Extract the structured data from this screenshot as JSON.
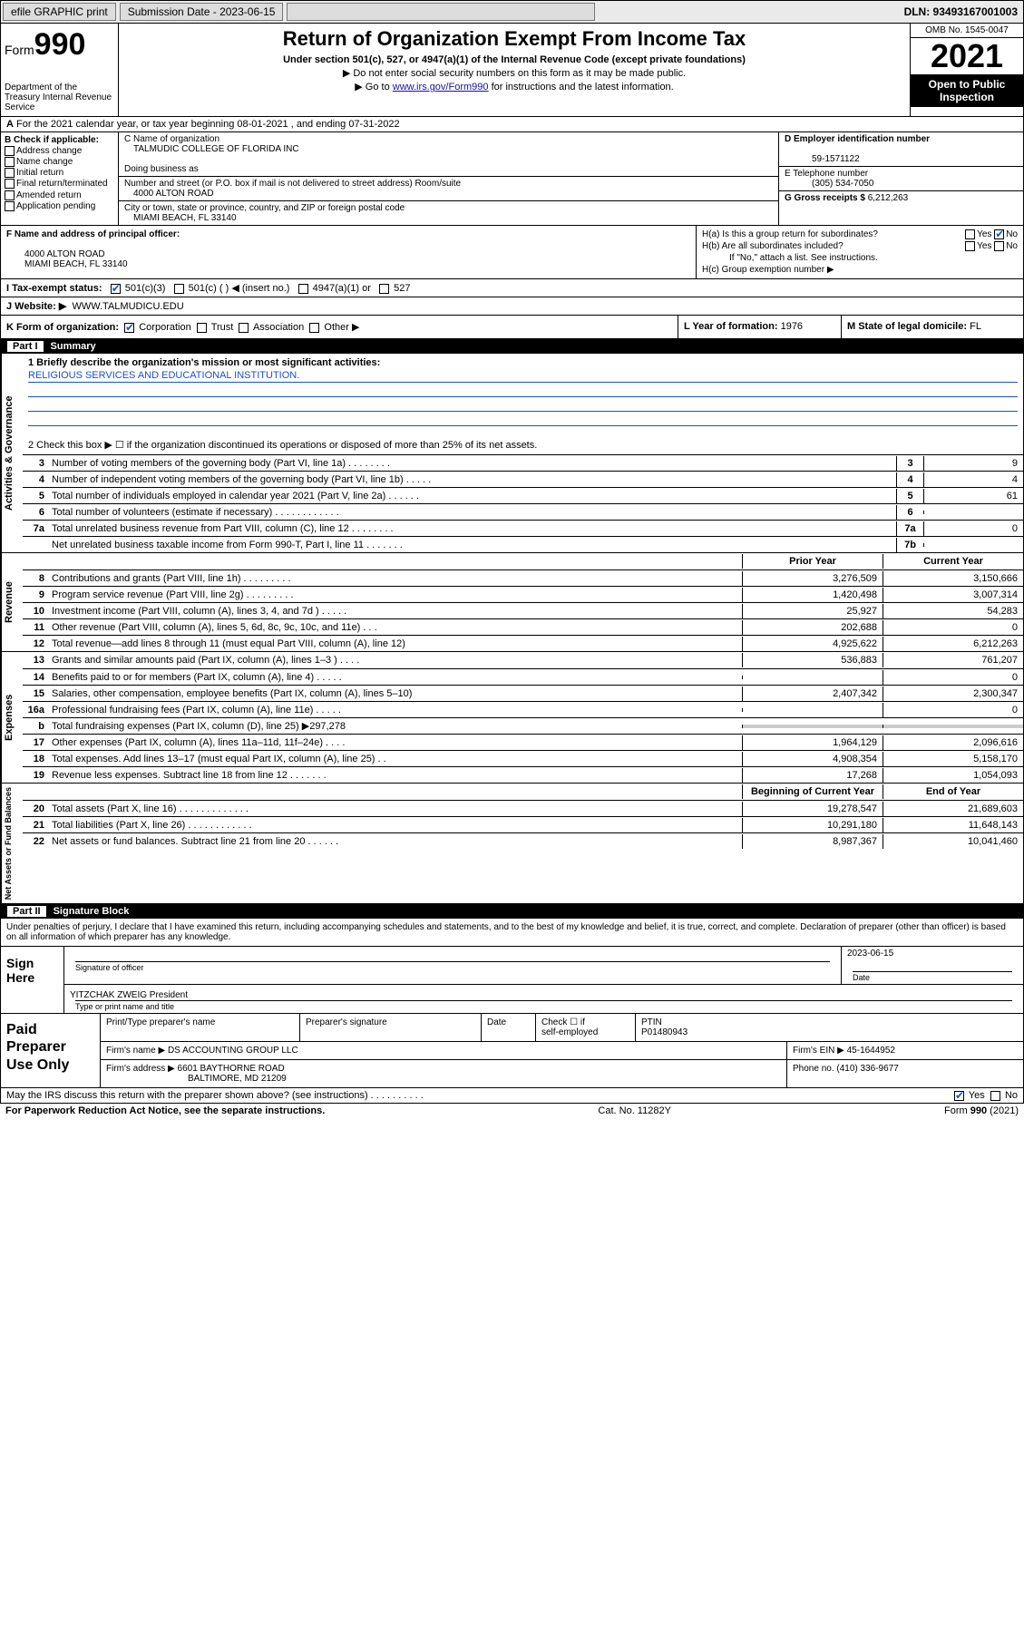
{
  "topbar": {
    "efile": "efile GRAPHIC print",
    "sub_label": "Submission Date - 2023-06-15",
    "dln": "DLN: 93493167001003"
  },
  "header": {
    "form_word": "Form",
    "form_num": "990",
    "title": "Return of Organization Exempt From Income Tax",
    "subtitle": "Under section 501(c), 527, or 4947(a)(1) of the Internal Revenue Code (except private foundations)",
    "note1": "▶ Do not enter social security numbers on this form as it may be made public.",
    "note2_pre": "▶ Go to ",
    "note2_link": "www.irs.gov/Form990",
    "note2_post": " for instructions and the latest information.",
    "dept": "Department of the Treasury Internal Revenue Service",
    "omb": "OMB No. 1545-0047",
    "year": "2021",
    "openpub": "Open to Public Inspection"
  },
  "row_a": "For the 2021 calendar year, or tax year beginning 08-01-2021   , and ending 07-31-2022",
  "col_b": {
    "hdr": "B Check if applicable:",
    "items": [
      "Address change",
      "Name change",
      "Initial return",
      "Final return/terminated",
      "Amended return",
      "Application pending"
    ]
  },
  "col_c": {
    "name_lbl": "C Name of organization",
    "name_val": "TALMUDIC COLLEGE OF FLORIDA INC",
    "dba_lbl": "Doing business as",
    "addr_lbl": "Number and street (or P.O. box if mail is not delivered to street address)      Room/suite",
    "addr_val": "4000 ALTON ROAD",
    "city_lbl": "City or town, state or province, country, and ZIP or foreign postal code",
    "city_val": "MIAMI BEACH, FL  33140"
  },
  "col_d": {
    "ein_lbl": "D Employer identification number",
    "ein_val": "59-1571122",
    "phone_lbl": "E Telephone number",
    "phone_val": "(305) 534-7050",
    "gross_lbl": "G Gross receipts $",
    "gross_val": "6,212,263"
  },
  "block_f": {
    "f_lbl": "F  Name and address of principal officer:",
    "f_addr1": "4000 ALTON ROAD",
    "f_addr2": "MIAMI BEACH, FL  33140",
    "ha": "H(a)  Is this a group return for subordinates?",
    "ha_yes": "Yes",
    "ha_no": "No",
    "hb": "H(b)  Are all subordinates included?",
    "hb_note": "If \"No,\" attach a list. See instructions.",
    "hc": "H(c)  Group exemption number ▶"
  },
  "row_i": {
    "lbl": "I   Tax-exempt status:",
    "o1": "501(c)(3)",
    "o2": "501(c) (  ) ◀ (insert no.)",
    "o3": "4947(a)(1) or",
    "o4": "527"
  },
  "row_j": {
    "lbl": "J   Website: ▶",
    "val": "WWW.TALMUDICU.EDU"
  },
  "row_k": {
    "k_lbl": "K Form of organization:",
    "k_opts": [
      "Corporation",
      "Trust",
      "Association",
      "Other ▶"
    ],
    "l_lbl": "L Year of formation:",
    "l_val": "1976",
    "m_lbl": "M State of legal domicile:",
    "m_val": "FL"
  },
  "part1": {
    "num": "Part I",
    "title": "Summary"
  },
  "mission": {
    "q1": "1  Briefly describe the organization's mission or most significant activities:",
    "text": "RELIGIOUS SERVICES AND EDUCATIONAL INSTITUTION.",
    "q2": "2  Check this box ▶ ☐  if the organization discontinued its operations or disposed of more than 25% of its net assets."
  },
  "gov_rows": [
    {
      "n": "3",
      "d": "Number of voting members of the governing body (Part VI, line 1a)  .   .   .   .   .   .   .   .",
      "bn": "3",
      "bv": "9"
    },
    {
      "n": "4",
      "d": "Number of independent voting members of the governing body (Part VI, line 1b)   .   .   .   .   .",
      "bn": "4",
      "bv": "4"
    },
    {
      "n": "5",
      "d": "Total number of individuals employed in calendar year 2021 (Part V, line 2a)   .   .   .   .   .   .",
      "bn": "5",
      "bv": "61"
    },
    {
      "n": "6",
      "d": "Total number of volunteers (estimate if necessary)   .   .   .   .   .   .   .   .   .   .   .   .",
      "bn": "6",
      "bv": ""
    },
    {
      "n": "7a",
      "d": "Total unrelated business revenue from Part VIII, column (C), line 12   .   .   .   .   .   .   .   .",
      "bn": "7a",
      "bv": "0"
    },
    {
      "n": "",
      "d": "Net unrelated business taxable income from Form 990-T, Part I, line 11   .   .   .   .   .   .   .",
      "bn": "7b",
      "bv": ""
    }
  ],
  "year_hdr": {
    "py": "Prior Year",
    "cy": "Current Year"
  },
  "rev_rows": [
    {
      "n": "8",
      "d": "Contributions and grants (Part VIII, line 1h)   .   .   .   .   .   .   .   .   .",
      "py": "3,276,509",
      "cy": "3,150,666"
    },
    {
      "n": "9",
      "d": "Program service revenue (Part VIII, line 2g)   .   .   .   .   .   .   .   .   .",
      "py": "1,420,498",
      "cy": "3,007,314"
    },
    {
      "n": "10",
      "d": "Investment income (Part VIII, column (A), lines 3, 4, and 7d )   .   .   .   .   .",
      "py": "25,927",
      "cy": "54,283"
    },
    {
      "n": "11",
      "d": "Other revenue (Part VIII, column (A), lines 5, 6d, 8c, 9c, 10c, and 11e)   .   .   .",
      "py": "202,688",
      "cy": "0"
    },
    {
      "n": "12",
      "d": "Total revenue—add lines 8 through 11 (must equal Part VIII, column (A), line 12)",
      "py": "4,925,622",
      "cy": "6,212,263"
    }
  ],
  "exp_rows": [
    {
      "n": "13",
      "d": "Grants and similar amounts paid (Part IX, column (A), lines 1–3 )   .   .   .   .",
      "py": "536,883",
      "cy": "761,207"
    },
    {
      "n": "14",
      "d": "Benefits paid to or for members (Part IX, column (A), line 4)   .   .   .   .   .",
      "py": "",
      "cy": "0"
    },
    {
      "n": "15",
      "d": "Salaries, other compensation, employee benefits (Part IX, column (A), lines 5–10)",
      "py": "2,407,342",
      "cy": "2,300,347"
    },
    {
      "n": "16a",
      "d": "Professional fundraising fees (Part IX, column (A), line 11e)   .   .   .   .   .",
      "py": "",
      "cy": "0"
    },
    {
      "n": "b",
      "d": "Total fundraising expenses (Part IX, column (D), line 25) ▶297,278",
      "py": "shade",
      "cy": "shade"
    },
    {
      "n": "17",
      "d": "Other expenses (Part IX, column (A), lines 11a–11d, 11f–24e)   .   .   .   .",
      "py": "1,964,129",
      "cy": "2,096,616"
    },
    {
      "n": "18",
      "d": "Total expenses. Add lines 13–17 (must equal Part IX, column (A), line 25)   .   .",
      "py": "4,908,354",
      "cy": "5,158,170"
    },
    {
      "n": "19",
      "d": "Revenue less expenses. Subtract line 18 from line 12   .   .   .   .   .   .   .",
      "py": "17,268",
      "cy": "1,054,093"
    }
  ],
  "net_hdr": {
    "py": "Beginning of Current Year",
    "cy": "End of Year"
  },
  "net_rows": [
    {
      "n": "20",
      "d": "Total assets (Part X, line 16)   .   .   .   .   .   .   .   .   .   .   .   .   .",
      "py": "19,278,547",
      "cy": "21,689,603"
    },
    {
      "n": "21",
      "d": "Total liabilities (Part X, line 26)   .   .   .   .   .   .   .   .   .   .   .   .",
      "py": "10,291,180",
      "cy": "11,648,143"
    },
    {
      "n": "22",
      "d": "Net assets or fund balances. Subtract line 21 from line 20   .   .   .   .   .   .",
      "py": "8,987,367",
      "cy": "10,041,460"
    }
  ],
  "side_labels": {
    "gov": "Activities & Governance",
    "rev": "Revenue",
    "exp": "Expenses",
    "net": "Net Assets or Fund Balances"
  },
  "part2": {
    "num": "Part II",
    "title": "Signature Block"
  },
  "sig_intro": "Under penalties of perjury, I declare that I have examined this return, including accompanying schedules and statements, and to the best of my knowledge and belief, it is true, correct, and complete. Declaration of preparer (other than officer) is based on all information of which preparer has any knowledge.",
  "sign": {
    "label": "Sign Here",
    "sig_of_officer": "Signature of officer",
    "date": "2023-06-15",
    "date_lbl": "Date",
    "name": "YITZCHAK ZWEIG  President",
    "name_lbl": "Type or print name and title"
  },
  "paid": {
    "label": "Paid Preparer Use Only",
    "h1": "Print/Type preparer's name",
    "h2": "Preparer's signature",
    "h3": "Date",
    "h4a": "Check ☐ if",
    "h4b": "self-employed",
    "h5": "PTIN",
    "ptin": "P01480943",
    "firm_lbl": "Firm's name   ▶",
    "firm": "DS ACCOUNTING GROUP LLC",
    "ein_lbl": "Firm's EIN ▶",
    "ein": "45-1644952",
    "addr_lbl": "Firm's address ▶",
    "addr1": "6601 BAYTHORNE ROAD",
    "addr2": "BALTIMORE, MD  21209",
    "phone_lbl": "Phone no.",
    "phone": "(410) 336-9677"
  },
  "may_discuss": {
    "q": "May the IRS discuss this return with the preparer shown above? (see instructions)   .   .   .   .   .   .   .   .   .   .",
    "yes": "Yes",
    "no": "No"
  },
  "footer": {
    "l": "For Paperwork Reduction Act Notice, see the separate instructions.",
    "m": "Cat. No. 11282Y",
    "r": "Form 990 (2021)"
  }
}
